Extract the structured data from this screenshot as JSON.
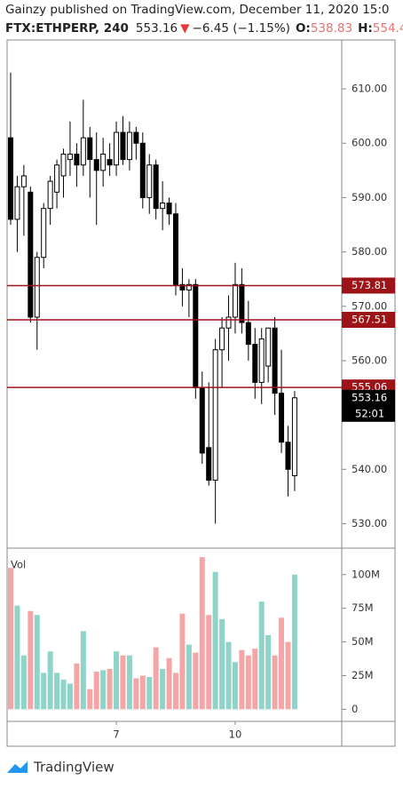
{
  "header": {
    "line1": "Gainzy published on TradingView.com, December 11, 2020 15:0",
    "symbol": "FTX:ETHPERP, 240",
    "price": "553.16",
    "arrow": "▼",
    "change": "−6.45 (−1.15%)",
    "open_label": "O:",
    "open_value": "538.83",
    "high_label": "H:",
    "high_value": "554.4"
  },
  "chart_data": {
    "type": "candlestick",
    "categories": [
      null,
      null,
      null,
      null,
      null,
      null,
      null,
      null,
      null,
      null,
      null,
      null,
      null,
      null,
      null,
      null,
      "7",
      null,
      null,
      null,
      null,
      null,
      null,
      null,
      null,
      null,
      null,
      null,
      null,
      null,
      null,
      null,
      null,
      null,
      "10",
      null,
      null,
      null,
      null,
      null,
      null,
      null,
      null,
      null
    ],
    "open": [
      601,
      586,
      592,
      591,
      568,
      579,
      588,
      591,
      594,
      597,
      598,
      596,
      601,
      597,
      595,
      597,
      596,
      602,
      597,
      602,
      600,
      590,
      596,
      588,
      589,
      587,
      574,
      573,
      574,
      555,
      544,
      538,
      562,
      566,
      568,
      574,
      567,
      563,
      556,
      559,
      566,
      554,
      545,
      538.83
    ],
    "high": [
      613,
      594,
      596,
      592,
      580,
      589,
      594,
      597,
      599,
      604,
      600,
      608,
      603,
      602,
      601,
      600,
      604,
      605,
      604,
      603,
      602,
      598,
      597,
      593,
      590,
      589,
      577,
      575,
      575,
      558,
      556,
      564,
      568,
      572,
      578,
      577,
      571,
      566,
      566,
      566,
      568,
      562,
      548,
      554.4
    ],
    "low": [
      585,
      580,
      583,
      567,
      562,
      577,
      585,
      588,
      590,
      594,
      592,
      594,
      590,
      585,
      592,
      594,
      594,
      596,
      595,
      597,
      588,
      587,
      586,
      584,
      585,
      572,
      570,
      568,
      553,
      541,
      537,
      530,
      555,
      560,
      565,
      565,
      560,
      553,
      552,
      556,
      550,
      543,
      535,
      536
    ],
    "close": [
      586,
      592,
      594,
      568,
      579,
      588,
      593,
      596,
      598,
      598,
      596,
      601,
      597,
      595,
      598,
      596,
      602,
      597,
      602,
      600,
      590,
      596,
      588,
      589,
      587,
      574,
      573,
      574,
      555,
      543,
      538,
      562,
      566,
      568,
      574,
      567,
      563,
      556,
      564,
      566,
      554,
      545,
      540,
      553.16
    ],
    "volume": [
      105,
      77,
      40,
      73,
      70,
      27,
      43,
      27,
      22,
      19,
      34,
      58,
      15,
      28,
      29,
      30,
      43,
      40,
      40,
      23,
      25,
      24,
      46,
      30,
      38,
      27,
      71,
      48,
      42,
      113,
      70,
      102,
      67,
      50,
      35,
      44,
      40,
      45,
      80,
      55,
      40,
      68,
      50,
      100
    ],
    "ylim": [
      525.5,
      619
    ],
    "yticks": [
      {
        "value": 530,
        "label": "530.00"
      },
      {
        "value": 540,
        "label": "540.00"
      },
      {
        "value": 560,
        "label": "560.00"
      },
      {
        "value": 570,
        "label": "570.00"
      },
      {
        "value": 580,
        "label": "580.00"
      },
      {
        "value": 590,
        "label": "590.00"
      },
      {
        "value": 600,
        "label": "600.00"
      },
      {
        "value": 610,
        "label": "610.00"
      }
    ],
    "levels": [
      573.81,
      567.51,
      555.06
    ],
    "level_color": "#9c1418",
    "last_price": 553.16,
    "countdown": "52:01",
    "volume_label": "Vol",
    "volume_ylim": [
      -9,
      119
    ],
    "volume_yticks": [
      0,
      {
        "value": 25,
        "label": "25M"
      },
      {
        "value": 50,
        "label": "50M"
      },
      {
        "value": 75,
        "label": "75M"
      },
      {
        "value": 100,
        "label": "100M"
      }
    ],
    "up_color": "#ffffff",
    "down_color": "#000000",
    "volume_up_color": "#8fd3c9",
    "volume_down_color": "#f4a6a7"
  },
  "footer": {
    "brand": "TradingView"
  }
}
